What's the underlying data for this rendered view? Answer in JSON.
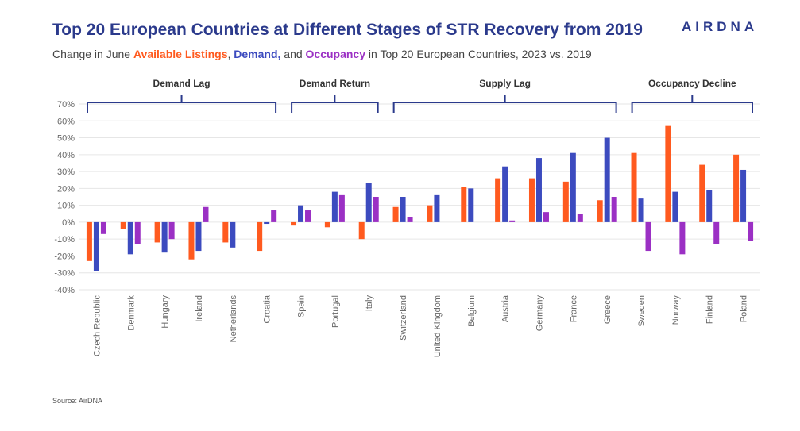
{
  "header": {
    "title": "Top 20 European Countries at Different Stages of STR Recovery from 2019",
    "subtitle_prefix": "Change in June ",
    "subtitle_listings": "Available Listings",
    "subtitle_sep1": ", ",
    "subtitle_demand": "Demand,",
    "subtitle_sep2": " and ",
    "subtitle_occupancy": "Occupancy",
    "subtitle_suffix": " in Top 20 European Countries, 2023 vs. 2019",
    "logo": "AIRDNA"
  },
  "footer": {
    "source": "Source: AirDNA"
  },
  "colors": {
    "listings": "#ff5a1f",
    "demand": "#3c4bbf",
    "occupancy": "#9b30c4",
    "brace": "#2b3a8c",
    "grid": "#e6e6e6"
  },
  "chart_data": {
    "type": "bar",
    "title": "Top 20 European Countries at Different Stages of STR Recovery from 2019",
    "subtitle": "Change in June Available Listings, Demand, and Occupancy in Top 20 European Countries, 2023 vs. 2019",
    "xlabel": "",
    "ylabel": "",
    "ylim": [
      -40,
      70
    ],
    "yticks": [
      "70%",
      "60%",
      "50%",
      "40%",
      "30%",
      "20%",
      "10%",
      "0%",
      "-10%",
      "-20%",
      "-30%",
      "-40%"
    ],
    "grid": true,
    "categories": [
      "Czech Republic",
      "Denmark",
      "Hungary",
      "Ireland",
      "Netherlands",
      "Croatia",
      "Spain",
      "Portugal",
      "Italy",
      "Switzerland",
      "United Kingdom",
      "Belgium",
      "Austria",
      "Germany",
      "France",
      "Greece",
      "Sweden",
      "Norway",
      "Finland",
      "Poland"
    ],
    "series": [
      {
        "name": "Available Listings",
        "values": [
          -23,
          -4,
          -12,
          -22,
          -12,
          -17,
          -2,
          -3,
          -10,
          9,
          10,
          21,
          26,
          26,
          24,
          13,
          41,
          57,
          34,
          40
        ]
      },
      {
        "name": "Demand",
        "values": [
          -29,
          -19,
          -18,
          -17,
          -15,
          -1,
          10,
          18,
          23,
          15,
          16,
          20,
          33,
          38,
          41,
          50,
          14,
          18,
          19,
          31
        ]
      },
      {
        "name": "Occupancy",
        "values": [
          -7,
          -13,
          -10,
          9,
          0,
          7,
          7,
          16,
          15,
          3,
          0,
          0,
          1,
          6,
          5,
          15,
          -17,
          -19,
          -13,
          -11
        ]
      }
    ],
    "groups": [
      {
        "label": "Demand Lag",
        "from": 0,
        "to": 5
      },
      {
        "label": "Demand Return",
        "from": 6,
        "to": 8
      },
      {
        "label": "Supply Lag",
        "from": 9,
        "to": 15
      },
      {
        "label": "Occupancy Decline",
        "from": 16,
        "to": 19
      }
    ]
  }
}
